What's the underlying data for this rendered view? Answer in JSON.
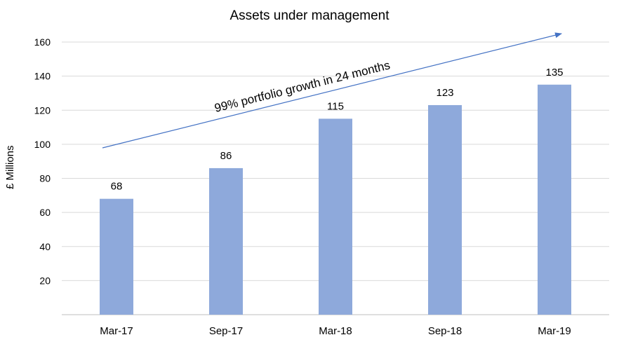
{
  "chart_data": {
    "type": "bar",
    "title": "Assets under management",
    "ylabel": "£ Millions",
    "xlabel": "",
    "categories": [
      "Mar-17",
      "Sep-17",
      "Mar-18",
      "Sep-18",
      "Mar-19"
    ],
    "values": [
      68,
      86,
      115,
      123,
      135
    ],
    "data_labels": [
      "68",
      "86",
      "115",
      "123",
      "135"
    ],
    "ylim": [
      0,
      160
    ],
    "yticks": [
      20,
      40,
      60,
      80,
      100,
      120,
      140,
      160
    ],
    "grid": true,
    "legend": "none",
    "bar_color": "#8EA9DB",
    "annotation": {
      "text": "99% portfolio growth in 24 months",
      "arrow_color": "#4472C4"
    }
  }
}
